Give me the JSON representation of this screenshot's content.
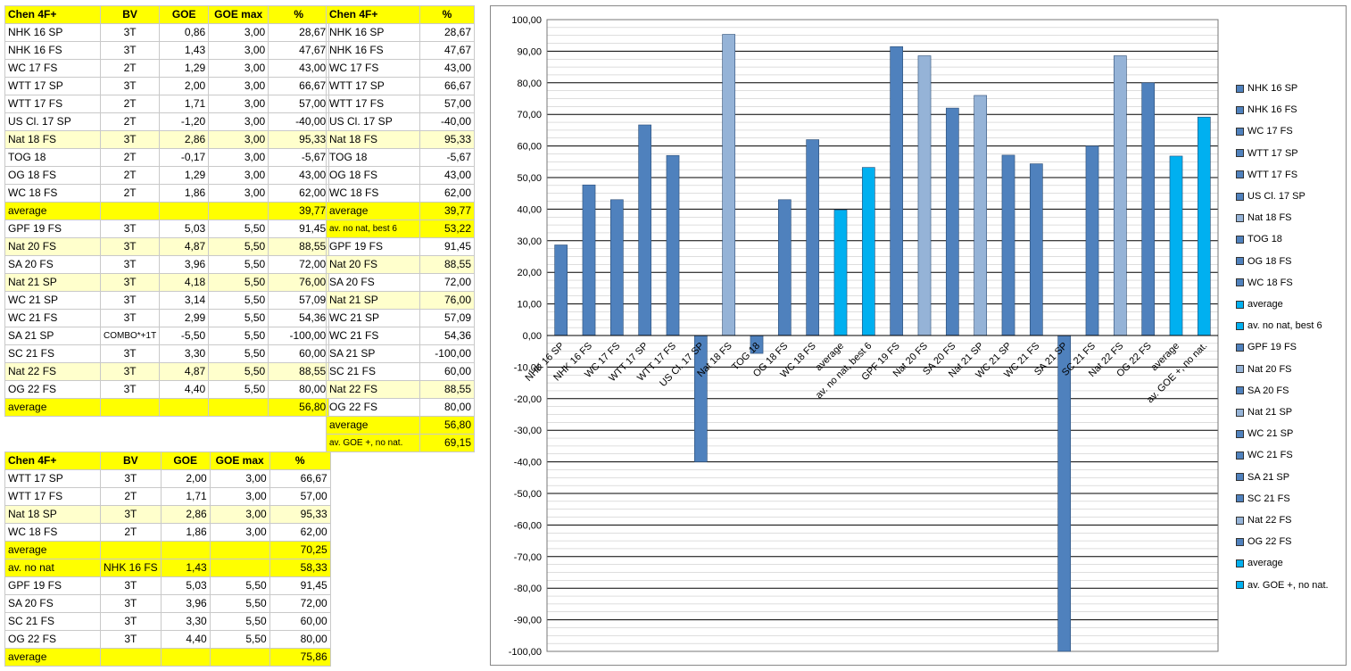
{
  "table1": {
    "header": [
      "Chen 4F+",
      "BV",
      "GOE",
      "GOE max",
      "%"
    ],
    "rows": [
      {
        "name": "NHK 16 SP",
        "bv": "3T",
        "goe": "0,86",
        "goemax": "3,00",
        "pct": "28,67",
        "hl": false
      },
      {
        "name": "NHK 16 FS",
        "bv": "3T",
        "goe": "1,43",
        "goemax": "3,00",
        "pct": "47,67",
        "hl": false
      },
      {
        "name": "WC 17 FS",
        "bv": "2T",
        "goe": "1,29",
        "goemax": "3,00",
        "pct": "43,00",
        "hl": false
      },
      {
        "name": "WTT 17 SP",
        "bv": "3T",
        "goe": "2,00",
        "goemax": "3,00",
        "pct": "66,67",
        "hl": false
      },
      {
        "name": "WTT 17 FS",
        "bv": "2T",
        "goe": "1,71",
        "goemax": "3,00",
        "pct": "57,00",
        "hl": false
      },
      {
        "name": "US Cl. 17 SP",
        "bv": "2T",
        "goe": "-1,20",
        "goemax": "3,00",
        "pct": "-40,00",
        "hl": false
      },
      {
        "name": "Nat 18 FS",
        "bv": "3T",
        "goe": "2,86",
        "goemax": "3,00",
        "pct": "95,33",
        "hl": true
      },
      {
        "name": "TOG 18",
        "bv": "2T",
        "goe": "-0,17",
        "goemax": "3,00",
        "pct": "-5,67",
        "hl": false
      },
      {
        "name": "OG 18 FS",
        "bv": "2T",
        "goe": "1,29",
        "goemax": "3,00",
        "pct": "43,00",
        "hl": false
      },
      {
        "name": "WC 18 FS",
        "bv": "2T",
        "goe": "1,86",
        "goemax": "3,00",
        "pct": "62,00",
        "hl": false
      }
    ],
    "avg1": {
      "label": "average",
      "pct": "39,77"
    },
    "rows2": [
      {
        "name": "GPF 19 FS",
        "bv": "3T",
        "goe": "5,03",
        "goemax": "5,50",
        "pct": "91,45",
        "hl": false
      },
      {
        "name": "Nat 20 FS",
        "bv": "3T",
        "goe": "4,87",
        "goemax": "5,50",
        "pct": "88,55",
        "hl": true
      },
      {
        "name": "SA 20 FS",
        "bv": "3T",
        "goe": "3,96",
        "goemax": "5,50",
        "pct": "72,00",
        "hl": false
      },
      {
        "name": "Nat 21 SP",
        "bv": "3T",
        "goe": "4,18",
        "goemax": "5,50",
        "pct": "76,00",
        "hl": true
      },
      {
        "name": "WC 21 SP",
        "bv": "3T",
        "goe": "3,14",
        "goemax": "5,50",
        "pct": "57,09",
        "hl": false
      },
      {
        "name": "WC 21 FS",
        "bv": "3T",
        "goe": "2,99",
        "goemax": "5,50",
        "pct": "54,36",
        "hl": false
      },
      {
        "name": "SA 21 SP",
        "bv": "COMBO*+1T",
        "goe": "-5,50",
        "goemax": "5,50",
        "pct": "-100,00",
        "hl": false
      },
      {
        "name": "SC 21 FS",
        "bv": "3T",
        "goe": "3,30",
        "goemax": "5,50",
        "pct": "60,00",
        "hl": false
      },
      {
        "name": "Nat 22 FS",
        "bv": "3T",
        "goe": "4,87",
        "goemax": "5,50",
        "pct": "88,55",
        "hl": true
      },
      {
        "name": "OG 22 FS",
        "bv": "3T",
        "goe": "4,40",
        "goemax": "5,50",
        "pct": "80,00",
        "hl": false
      }
    ],
    "avg2": {
      "label": "average",
      "pct": "56,80"
    }
  },
  "table2": {
    "header": [
      "Chen 4F+",
      "%"
    ],
    "rows": [
      {
        "name": "NHK 16 SP",
        "pct": "28,67",
        "style": ""
      },
      {
        "name": "NHK 16 FS",
        "pct": "47,67",
        "style": ""
      },
      {
        "name": "WC 17 FS",
        "pct": "43,00",
        "style": ""
      },
      {
        "name": "WTT 17 SP",
        "pct": "66,67",
        "style": ""
      },
      {
        "name": "WTT 17 FS",
        "pct": "57,00",
        "style": ""
      },
      {
        "name": "US Cl. 17 SP",
        "pct": "-40,00",
        "style": ""
      },
      {
        "name": "Nat 18 FS",
        "pct": "95,33",
        "style": "nat"
      },
      {
        "name": "TOG 18",
        "pct": "-5,67",
        "style": ""
      },
      {
        "name": "OG 18 FS",
        "pct": "43,00",
        "style": ""
      },
      {
        "name": "WC 18 FS",
        "pct": "62,00",
        "style": ""
      },
      {
        "name": "average",
        "pct": "39,77",
        "style": "avg"
      },
      {
        "name": "av. no nat, best 6",
        "pct": "53,22",
        "style": "avg"
      },
      {
        "name": "GPF 19 FS",
        "pct": "91,45",
        "style": ""
      },
      {
        "name": "Nat 20 FS",
        "pct": "88,55",
        "style": "nat"
      },
      {
        "name": "SA 20 FS",
        "pct": "72,00",
        "style": ""
      },
      {
        "name": "Nat 21 SP",
        "pct": "76,00",
        "style": "nat"
      },
      {
        "name": "WC 21 SP",
        "pct": "57,09",
        "style": ""
      },
      {
        "name": "WC 21 FS",
        "pct": "54,36",
        "style": ""
      },
      {
        "name": "SA 21 SP",
        "pct": "-100,00",
        "style": ""
      },
      {
        "name": "SC 21 FS",
        "pct": "60,00",
        "style": ""
      },
      {
        "name": "Nat 22 FS",
        "pct": "88,55",
        "style": "nat"
      },
      {
        "name": "OG 22 FS",
        "pct": "80,00",
        "style": ""
      },
      {
        "name": "average",
        "pct": "56,80",
        "style": "avg"
      },
      {
        "name": "av. GOE +, no nat.",
        "pct": "69,15",
        "style": "avg"
      }
    ]
  },
  "table3": {
    "header": [
      "Chen 4F+",
      "BV",
      "GOE",
      "GOE max",
      "%"
    ],
    "rows": [
      {
        "c": [
          "WTT 17 SP",
          "3T",
          "2,00",
          "3,00",
          "66,67"
        ],
        "style": ""
      },
      {
        "c": [
          "WTT 17 FS",
          "2T",
          "1,71",
          "3,00",
          "57,00"
        ],
        "style": ""
      },
      {
        "c": [
          "Nat 18 SP",
          "3T",
          "2,86",
          "3,00",
          "95,33"
        ],
        "style": "nat"
      },
      {
        "c": [
          "WC 18 FS",
          "2T",
          "1,86",
          "3,00",
          "62,00"
        ],
        "style": ""
      },
      {
        "c": [
          "average",
          "",
          "",
          "",
          "70,25"
        ],
        "style": "avg"
      },
      {
        "c": [
          "av. no nat",
          "NHK 16 FS",
          "1,43",
          "",
          "58,33"
        ],
        "style": "avg"
      },
      {
        "c": [
          "GPF 19 FS",
          "3T",
          "5,03",
          "5,50",
          "91,45"
        ],
        "style": ""
      },
      {
        "c": [
          "SA 20 FS",
          "3T",
          "3,96",
          "5,50",
          "72,00"
        ],
        "style": ""
      },
      {
        "c": [
          "SC 21 FS",
          "3T",
          "3,30",
          "5,50",
          "60,00"
        ],
        "style": ""
      },
      {
        "c": [
          "OG 22 FS",
          "3T",
          "4,40",
          "5,50",
          "80,00"
        ],
        "style": ""
      },
      {
        "c": [
          "average",
          "",
          "",
          "",
          "75,86"
        ],
        "style": "avg"
      }
    ]
  },
  "colors": {
    "regular": "#4f81bd",
    "nat": "#95b3d7",
    "avg": "#00b0f0"
  },
  "chart_data": {
    "type": "bar",
    "categories": [
      "NHK 16 SP",
      "NHK 16 FS",
      "WC 17 FS",
      "WTT 17 SP",
      "WTT 17 FS",
      "US Cl. 17 SP",
      "Nat 18 FS",
      "TOG 18",
      "OG 18 FS",
      "WC 18 FS",
      "average",
      "av. no nat, best 6",
      "GPF 19 FS",
      "Nat 20 FS",
      "SA 20 FS",
      "Nat 21 SP",
      "WC 21 SP",
      "WC 21 FS",
      "SA 21 SP",
      "SC 21 FS",
      "Nat 22 FS",
      "OG 22 FS",
      "average",
      "av. GOE +, no nat."
    ],
    "values": [
      28.67,
      47.67,
      43.0,
      66.67,
      57.0,
      -40.0,
      95.33,
      -5.67,
      43.0,
      62.0,
      39.77,
      53.22,
      91.45,
      88.55,
      72.0,
      76.0,
      57.09,
      54.36,
      -100.0,
      60.0,
      88.55,
      80.0,
      56.8,
      69.15
    ],
    "kinds": [
      "regular",
      "regular",
      "regular",
      "regular",
      "regular",
      "regular",
      "nat",
      "regular",
      "regular",
      "regular",
      "avg",
      "avg",
      "regular",
      "nat",
      "regular",
      "nat",
      "regular",
      "regular",
      "regular",
      "regular",
      "nat",
      "regular",
      "avg",
      "avg"
    ],
    "ylim": [
      -100,
      100
    ],
    "ytick_step": 10,
    "ytick_labels": [
      "100,00",
      "90,00",
      "80,00",
      "70,00",
      "60,00",
      "50,00",
      "40,00",
      "30,00",
      "20,00",
      "10,00",
      "0,00",
      "-10,00",
      "-20,00",
      "-30,00",
      "-40,00",
      "-50,00",
      "-60,00",
      "-70,00",
      "-80,00",
      "-90,00",
      "-100,00"
    ],
    "legend": [
      "NHK 16 SP",
      "NHK 16 FS",
      "WC 17 FS",
      "WTT 17 SP",
      "WTT 17 FS",
      "US Cl. 17 SP",
      "Nat 18 FS",
      "TOG 18",
      "OG 18 FS",
      "WC 18 FS",
      "average",
      "av. no nat, best 6",
      "GPF 19 FS",
      "Nat 20 FS",
      "SA 20 FS",
      "Nat 21 SP",
      "WC 21 SP",
      "WC 21 FS",
      "SA 21 SP",
      "SC 21 FS",
      "Nat 22 FS",
      "OG 22 FS",
      "average",
      "av. GOE +, no nat."
    ],
    "legend_position": "right",
    "grid": true,
    "title": "",
    "xlabel": "",
    "ylabel": ""
  }
}
